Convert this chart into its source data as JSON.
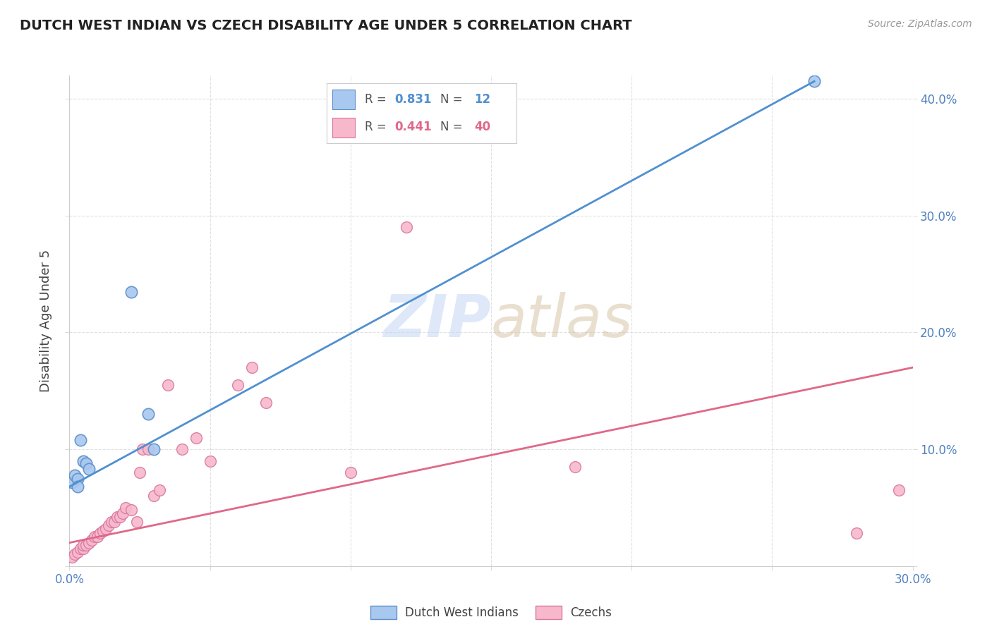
{
  "title": "DUTCH WEST INDIAN VS CZECH DISABILITY AGE UNDER 5 CORRELATION CHART",
  "source": "Source: ZipAtlas.com",
  "ylabel": "Disability Age Under 5",
  "xlim": [
    0.0,
    0.3
  ],
  "ylim": [
    0.0,
    0.42
  ],
  "xticks": [
    0.0,
    0.05,
    0.1,
    0.15,
    0.2,
    0.25,
    0.3
  ],
  "yticks": [
    0.0,
    0.1,
    0.2,
    0.3,
    0.4
  ],
  "ytick_labels_right": [
    "",
    "10.0%",
    "20.0%",
    "30.0%",
    "40.0%"
  ],
  "blue_line_x": [
    0.0,
    0.265
  ],
  "blue_line_y": [
    0.068,
    0.415
  ],
  "pink_line_x": [
    0.0,
    0.3
  ],
  "pink_line_y": [
    0.02,
    0.17
  ],
  "blue_scatter_x": [
    0.001,
    0.002,
    0.003,
    0.003,
    0.004,
    0.005,
    0.006,
    0.007,
    0.022,
    0.028,
    0.03,
    0.265
  ],
  "blue_scatter_y": [
    0.072,
    0.078,
    0.075,
    0.068,
    0.108,
    0.09,
    0.088,
    0.083,
    0.235,
    0.13,
    0.1,
    0.415
  ],
  "pink_scatter_x": [
    0.001,
    0.002,
    0.003,
    0.004,
    0.005,
    0.005,
    0.006,
    0.007,
    0.008,
    0.009,
    0.01,
    0.011,
    0.012,
    0.013,
    0.014,
    0.015,
    0.016,
    0.017,
    0.018,
    0.019,
    0.02,
    0.022,
    0.024,
    0.025,
    0.026,
    0.028,
    0.03,
    0.032,
    0.035,
    0.04,
    0.045,
    0.05,
    0.06,
    0.065,
    0.07,
    0.1,
    0.12,
    0.18,
    0.28,
    0.295
  ],
  "pink_scatter_y": [
    0.008,
    0.01,
    0.012,
    0.015,
    0.015,
    0.018,
    0.018,
    0.02,
    0.022,
    0.025,
    0.025,
    0.028,
    0.03,
    0.032,
    0.035,
    0.038,
    0.038,
    0.042,
    0.042,
    0.045,
    0.05,
    0.048,
    0.038,
    0.08,
    0.1,
    0.1,
    0.06,
    0.065,
    0.155,
    0.1,
    0.11,
    0.09,
    0.155,
    0.17,
    0.14,
    0.08,
    0.29,
    0.085,
    0.028,
    0.065
  ],
  "blue_color": "#a8c8f0",
  "blue_edge_color": "#6090c8",
  "pink_color": "#f8b8cc",
  "pink_edge_color": "#d878a0",
  "blue_line_color": "#5090d0",
  "pink_line_color": "#e06888",
  "watermark_zip": "ZIP",
  "watermark_atlas": "atlas",
  "background_color": "#ffffff",
  "grid_color": "#e0e0e0",
  "title_fontsize": 14,
  "source_fontsize": 10,
  "tick_fontsize": 12,
  "ylabel_fontsize": 13,
  "legend_r_blue": "0.831",
  "legend_n_blue": "12",
  "legend_r_pink": "0.441",
  "legend_n_pink": "40",
  "legend_color_blue": "#5090d0",
  "legend_color_pink": "#e06888",
  "legend_patch_blue": "#a8c8f0",
  "legend_patch_pink": "#f8b8cc"
}
